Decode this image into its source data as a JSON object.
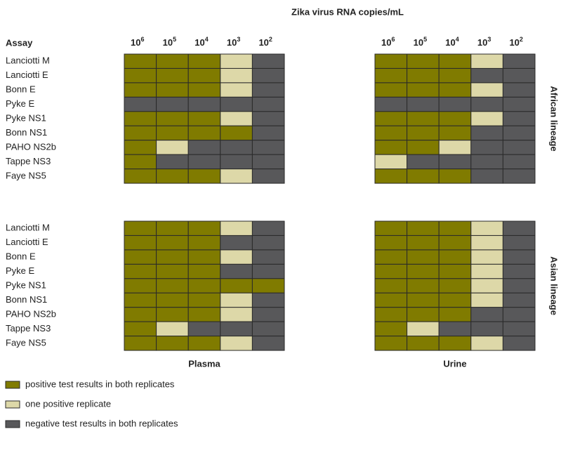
{
  "title": "Zika virus RNA copies/mL",
  "assay_header": "Assay",
  "columns": [
    {
      "base": "10",
      "exp": "6"
    },
    {
      "base": "10",
      "exp": "5"
    },
    {
      "base": "10",
      "exp": "4"
    },
    {
      "base": "10",
      "exp": "3"
    },
    {
      "base": "10",
      "exp": "2"
    }
  ],
  "samples": [
    "Plasma",
    "Urine"
  ],
  "panels": [
    {
      "lineage": "African lineage",
      "assays": [
        "Lanciotti M",
        "Lanciotti E",
        "Bonn E",
        "Pyke E",
        "Pyke NS1",
        "Bonn NS1",
        "PAHO NS2b",
        "Tappe NS3",
        "Faye NS5"
      ],
      "grids": [
        [
          [
            0,
            0,
            0,
            1,
            2
          ],
          [
            0,
            0,
            0,
            1,
            2
          ],
          [
            0,
            0,
            0,
            1,
            2
          ],
          [
            2,
            2,
            2,
            2,
            2
          ],
          [
            0,
            0,
            0,
            1,
            2
          ],
          [
            0,
            0,
            0,
            0,
            2
          ],
          [
            0,
            1,
            2,
            2,
            2
          ],
          [
            0,
            2,
            2,
            2,
            2
          ],
          [
            0,
            0,
            0,
            1,
            2
          ]
        ],
        [
          [
            0,
            0,
            0,
            1,
            2
          ],
          [
            0,
            0,
            0,
            2,
            2
          ],
          [
            0,
            0,
            0,
            1,
            2
          ],
          [
            2,
            2,
            2,
            2,
            2
          ],
          [
            0,
            0,
            0,
            1,
            2
          ],
          [
            0,
            0,
            0,
            2,
            2
          ],
          [
            0,
            0,
            1,
            2,
            2
          ],
          [
            1,
            2,
            2,
            2,
            2
          ],
          [
            0,
            0,
            0,
            2,
            2
          ]
        ]
      ]
    },
    {
      "lineage": "Asian lineage",
      "assays": [
        "Lanciotti M",
        "Lanciotti E",
        "Bonn E",
        "Pyke E",
        "Pyke NS1",
        "Bonn NS1",
        "PAHO NS2b",
        "Tappe NS3",
        "Faye NS5"
      ],
      "grids": [
        [
          [
            0,
            0,
            0,
            1,
            2
          ],
          [
            0,
            0,
            0,
            2,
            2
          ],
          [
            0,
            0,
            0,
            1,
            2
          ],
          [
            0,
            0,
            0,
            2,
            2
          ],
          [
            0,
            0,
            0,
            0,
            0
          ],
          [
            0,
            0,
            0,
            1,
            2
          ],
          [
            0,
            0,
            0,
            1,
            2
          ],
          [
            0,
            1,
            2,
            2,
            2
          ],
          [
            0,
            0,
            0,
            1,
            2
          ]
        ],
        [
          [
            0,
            0,
            0,
            1,
            2
          ],
          [
            0,
            0,
            0,
            1,
            2
          ],
          [
            0,
            0,
            0,
            1,
            2
          ],
          [
            0,
            0,
            0,
            1,
            2
          ],
          [
            0,
            0,
            0,
            1,
            2
          ],
          [
            0,
            0,
            0,
            1,
            2
          ],
          [
            0,
            0,
            0,
            2,
            2
          ],
          [
            0,
            1,
            2,
            2,
            2
          ],
          [
            0,
            0,
            0,
            1,
            2
          ]
        ]
      ]
    }
  ],
  "legend": [
    {
      "label": "positive test results in both replicates",
      "color": "#807b00"
    },
    {
      "label": "one positive replicate",
      "color": "#ddd8a8"
    },
    {
      "label": "negative test results in both replicates",
      "color": "#58585a"
    }
  ]
}
